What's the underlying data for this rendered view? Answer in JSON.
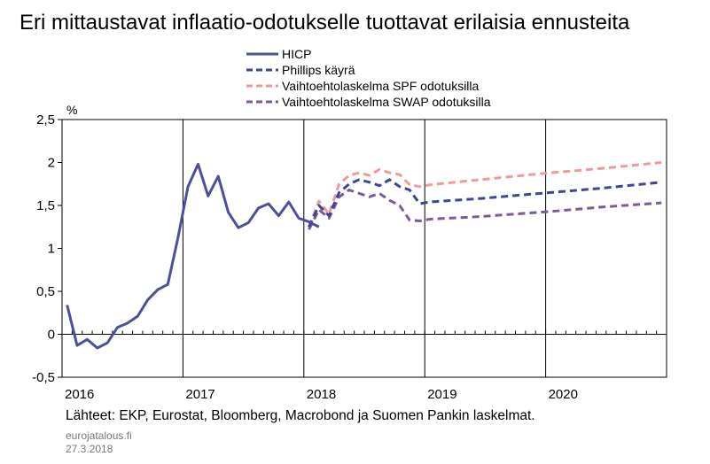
{
  "title": "Eri mittaustavat inflaatio-odotukselle tuottavat erilaisia ennusteita",
  "source_note": "Lähteet: EKP, Eurostat, Bloomberg, Macrobond ja Suomen Pankin laskelmat.",
  "site": "eurojatalous.fi",
  "date": "27.3.2018",
  "chart_data": {
    "type": "line",
    "ylabel": "%",
    "ylim": [
      -0.5,
      2.5
    ],
    "yticks": [
      "-0,5",
      "0",
      "0,5",
      "1",
      "1,5",
      "2",
      "2,5"
    ],
    "xlim": [
      "2016-01",
      "2020-12"
    ],
    "xticks": [
      "2016",
      "2017",
      "2018",
      "2019",
      "2020"
    ],
    "grid": "vertical year lines",
    "legend_position": "top-center",
    "series": [
      {
        "name": "HICP",
        "color": "#4b4f9c",
        "style": "solid",
        "x": [
          "2016-01",
          "2016-02",
          "2016-03",
          "2016-04",
          "2016-05",
          "2016-06",
          "2016-07",
          "2016-08",
          "2016-09",
          "2016-10",
          "2016-11",
          "2016-12",
          "2017-01",
          "2017-02",
          "2017-03",
          "2017-04",
          "2017-05",
          "2017-06",
          "2017-07",
          "2017-08",
          "2017-09",
          "2017-10",
          "2017-11",
          "2017-12",
          "2018-01",
          "2018-02"
        ],
        "values": [
          0.34,
          -0.13,
          -0.06,
          -0.16,
          -0.1,
          0.08,
          0.13,
          0.21,
          0.4,
          0.52,
          0.58,
          1.12,
          1.72,
          1.98,
          1.61,
          1.84,
          1.42,
          1.24,
          1.3,
          1.47,
          1.52,
          1.38,
          1.54,
          1.35,
          1.31,
          1.25
        ]
      },
      {
        "name": "Phillips käyrä",
        "color": "#3e4596",
        "style": "dashed",
        "x": [
          "2018-01",
          "2018-02",
          "2018-03",
          "2018-04",
          "2018-05",
          "2018-06",
          "2018-07",
          "2018-08",
          "2018-09",
          "2018-10",
          "2018-11",
          "2018-12",
          "2019-01",
          "2019-06",
          "2020-01",
          "2020-06",
          "2020-12"
        ],
        "values": [
          1.25,
          1.5,
          1.38,
          1.65,
          1.75,
          1.8,
          1.77,
          1.73,
          1.8,
          1.72,
          1.68,
          1.52,
          1.54,
          1.58,
          1.65,
          1.7,
          1.77
        ]
      },
      {
        "name": "Vaihtoehtolaskelma SPF odotuksilla",
        "color": "#f0999d",
        "style": "dashed",
        "x": [
          "2018-01",
          "2018-02",
          "2018-03",
          "2018-04",
          "2018-05",
          "2018-06",
          "2018-07",
          "2018-08",
          "2018-09",
          "2018-10",
          "2018-11",
          "2018-12",
          "2019-01",
          "2019-06",
          "2020-01",
          "2020-06",
          "2020-12"
        ],
        "values": [
          1.25,
          1.55,
          1.4,
          1.75,
          1.85,
          1.88,
          1.85,
          1.92,
          1.88,
          1.86,
          1.74,
          1.72,
          1.74,
          1.8,
          1.88,
          1.93,
          2.0
        ]
      },
      {
        "name": "Vaihtoehtolaskelma SWAP odotuksilla",
        "color": "#7a5a98",
        "style": "dashed",
        "x": [
          "2018-01",
          "2018-02",
          "2018-03",
          "2018-04",
          "2018-05",
          "2018-06",
          "2018-07",
          "2018-08",
          "2018-09",
          "2018-10",
          "2018-11",
          "2018-12",
          "2019-01",
          "2019-06",
          "2020-01",
          "2020-06",
          "2020-12"
        ],
        "values": [
          1.22,
          1.45,
          1.35,
          1.6,
          1.68,
          1.64,
          1.6,
          1.64,
          1.56,
          1.5,
          1.33,
          1.32,
          1.34,
          1.37,
          1.43,
          1.48,
          1.53
        ]
      }
    ]
  }
}
